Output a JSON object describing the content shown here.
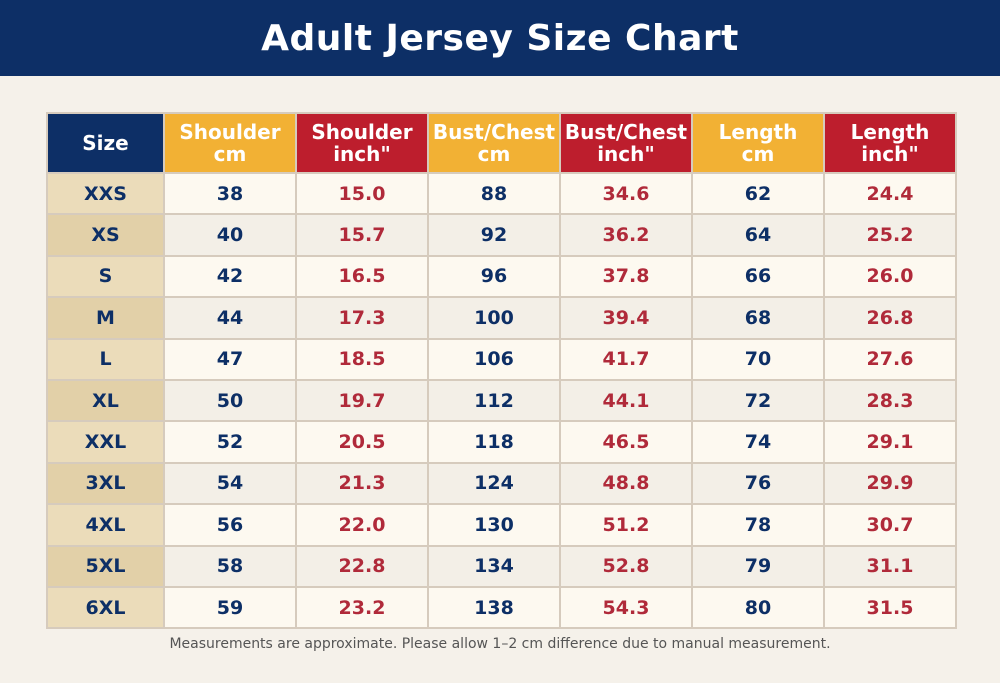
{
  "title": "Adult Jersey Size Chart",
  "colors": {
    "navy": "#0d2f66",
    "gold": "#f2b134",
    "red": "#bd1e2d",
    "background": "#f5f1ea"
  },
  "table": {
    "headers": [
      {
        "line1": "Size",
        "line2": ""
      },
      {
        "line1": "Shoulder",
        "line2": "cm"
      },
      {
        "line1": "Shoulder",
        "line2": "inch\""
      },
      {
        "line1": "Bust/Chest",
        "line2": "cm"
      },
      {
        "line1": "Bust/Chest",
        "line2": "inch\""
      },
      {
        "line1": "Length",
        "line2": "cm"
      },
      {
        "line1": "Length",
        "line2": "inch\""
      }
    ],
    "rows": [
      [
        "XXS",
        "38",
        "15.0",
        "88",
        "34.6",
        "62",
        "24.4"
      ],
      [
        "XS",
        "40",
        "15.7",
        "92",
        "36.2",
        "64",
        "25.2"
      ],
      [
        "S",
        "42",
        "16.5",
        "96",
        "37.8",
        "66",
        "26.0"
      ],
      [
        "M",
        "44",
        "17.3",
        "100",
        "39.4",
        "68",
        "26.8"
      ],
      [
        "L",
        "47",
        "18.5",
        "106",
        "41.7",
        "70",
        "27.6"
      ],
      [
        "XL",
        "50",
        "19.7",
        "112",
        "44.1",
        "72",
        "28.3"
      ],
      [
        "XXL",
        "52",
        "20.5",
        "118",
        "46.5",
        "74",
        "29.1"
      ],
      [
        "3XL",
        "54",
        "21.3",
        "124",
        "48.8",
        "76",
        "29.9"
      ],
      [
        "4XL",
        "56",
        "22.0",
        "130",
        "51.2",
        "78",
        "30.7"
      ],
      [
        "5XL",
        "58",
        "22.8",
        "134",
        "52.8",
        "79",
        "31.1"
      ],
      [
        "6XL",
        "59",
        "23.2",
        "138",
        "54.3",
        "80",
        "31.5"
      ]
    ]
  },
  "footnote": "Measurements are approximate. Please allow 1–2 cm difference due to manual measurement."
}
